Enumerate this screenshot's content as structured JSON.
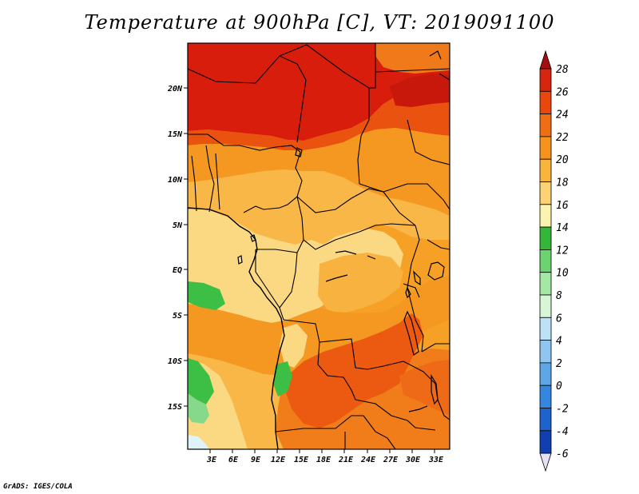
{
  "title": "Temperature at 900hPa [C], VT: 2019091100",
  "credit": "GrADS: IGES/COLA",
  "lat_labels": [
    "20N",
    "15N",
    "10N",
    "5N",
    "EQ",
    "5S",
    "10S",
    "15S"
  ],
  "lon_labels": [
    "3E",
    "6E",
    "9E",
    "12E",
    "15E",
    "18E",
    "21E",
    "24E",
    "27E",
    "30E",
    "33E"
  ],
  "colorbar": {
    "labels": [
      "28",
      "26",
      "24",
      "22",
      "20",
      "18",
      "16",
      "14",
      "12",
      "10",
      "8",
      "6",
      "4",
      "2",
      "0",
      "-2",
      "-4",
      "-6"
    ],
    "colors": [
      "#a50f0f",
      "#d7260f",
      "#e8480c",
      "#ef6e14",
      "#f5941c",
      "#f8b43c",
      "#fbd374",
      "#fdf3b0",
      "#34b739",
      "#6bd36f",
      "#a3e8a4",
      "#d7f6d6",
      "#bde1f6",
      "#8fc5ef",
      "#5ea7e6",
      "#3486de",
      "#1e62cc",
      "#123fb0",
      "#0a1f88",
      "#e6e2f6"
    ]
  },
  "colors": {
    "t28": "#d61f0c",
    "t26": "#e84a0f",
    "t24": "#f1741a",
    "t22": "#f69a24",
    "t20": "#f9b94a",
    "t18": "#fbdc8a",
    "t16": "#fef6bf",
    "t14": "#3dbf45",
    "t12": "#86d98b",
    "t10": "#dff3fb"
  }
}
